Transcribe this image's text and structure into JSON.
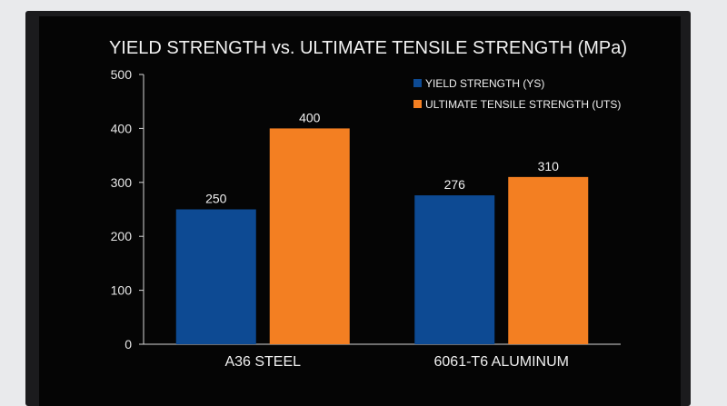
{
  "chart_data": {
    "type": "bar",
    "title": "YIELD STRENGTH vs. ULTIMATE TENSILE STRENGTH (MPa)",
    "categories": [
      "A36 STEEL",
      "6061-T6 ALUMINUM"
    ],
    "series": [
      {
        "name": "YIELD STRENGTH (YS)",
        "values": [
          250,
          276
        ],
        "color": "#0d4a93"
      },
      {
        "name": "ULTIMATE TENSILE STRENGTH (UTS)",
        "values": [
          400,
          310
        ],
        "color": "#f37f22"
      }
    ],
    "ylim": [
      0,
      500
    ],
    "yticks": [
      0,
      100,
      200,
      300,
      400,
      500
    ],
    "legend": "top-right",
    "grid": false
  }
}
